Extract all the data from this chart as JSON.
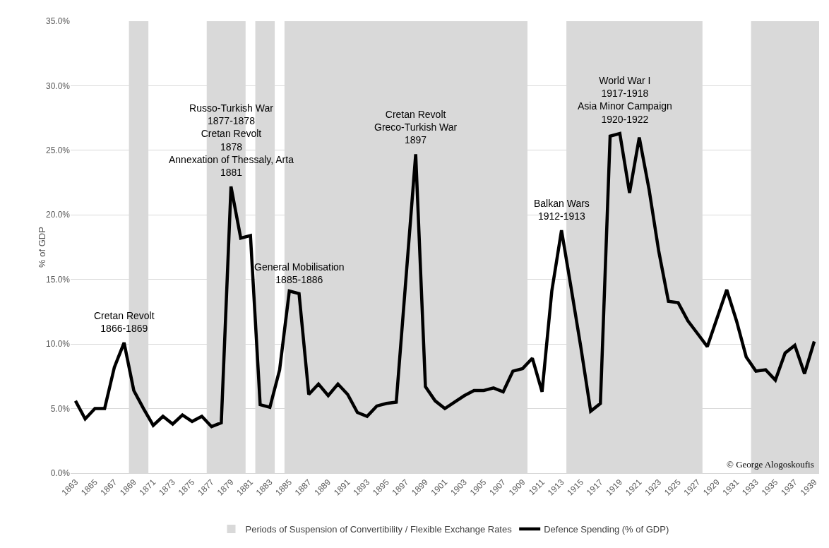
{
  "chart_data": {
    "type": "line",
    "ylabel": "% of GDP",
    "x": [
      1863,
      1864,
      1865,
      1866,
      1867,
      1868,
      1869,
      1870,
      1871,
      1872,
      1873,
      1874,
      1875,
      1876,
      1877,
      1878,
      1879,
      1880,
      1881,
      1882,
      1883,
      1884,
      1885,
      1886,
      1887,
      1888,
      1889,
      1890,
      1891,
      1892,
      1893,
      1894,
      1895,
      1896,
      1897,
      1898,
      1899,
      1900,
      1901,
      1902,
      1903,
      1904,
      1905,
      1906,
      1907,
      1908,
      1909,
      1910,
      1911,
      1912,
      1913,
      1914,
      1915,
      1916,
      1917,
      1918,
      1919,
      1920,
      1921,
      1922,
      1923,
      1924,
      1925,
      1926,
      1927,
      1928,
      1929,
      1930,
      1931,
      1932,
      1933,
      1934,
      1935,
      1936,
      1937,
      1938,
      1939
    ],
    "series": [
      {
        "name": "Defence Spending (% of GDP)",
        "color": "#000000",
        "values": [
          5.6,
          4.2,
          5.0,
          5.0,
          8.2,
          10.1,
          6.4,
          5.0,
          3.7,
          4.4,
          3.8,
          4.5,
          4.0,
          4.4,
          3.6,
          3.9,
          22.2,
          18.2,
          18.4,
          5.3,
          5.1,
          8.0,
          14.1,
          13.9,
          6.1,
          6.9,
          6.0,
          6.9,
          6.1,
          4.7,
          4.4,
          5.2,
          5.4,
          5.5,
          15.1,
          24.7,
          6.7,
          5.6,
          5.0,
          5.5,
          6.0,
          6.4,
          6.4,
          6.6,
          6.3,
          7.9,
          8.1,
          8.9,
          6.3,
          14.1,
          18.8,
          14.3,
          9.7,
          4.8,
          5.4,
          26.1,
          26.3,
          21.7,
          26.0,
          22.0,
          17.2,
          13.3,
          13.2,
          11.8,
          10.8,
          9.8,
          12.0,
          14.2,
          11.8,
          9.0,
          7.9,
          8.0,
          7.2,
          9.3,
          9.9,
          7.7,
          10.2
        ]
      }
    ],
    "bands": [
      {
        "axis": "x",
        "from": 1868.5,
        "to": 1870.5,
        "label": "Periods of Suspension of Convertibility / Flexible Exchange Rates",
        "color": "#d9d9d9"
      },
      {
        "axis": "x",
        "from": 1876.5,
        "to": 1880.5,
        "color": "#d9d9d9"
      },
      {
        "axis": "x",
        "from": 1881.5,
        "to": 1883.5,
        "color": "#d9d9d9"
      },
      {
        "axis": "x",
        "from": 1884.5,
        "to": 1909.5,
        "color": "#d9d9d9"
      },
      {
        "axis": "x",
        "from": 1913.5,
        "to": 1927.5,
        "color": "#d9d9d9"
      },
      {
        "axis": "x",
        "from": 1932.5,
        "to": 1939.5,
        "color": "#d9d9d9"
      }
    ],
    "annotations": [
      {
        "text": "Cretan Revolt\n1866-1869",
        "x": 1868,
        "y": 10.1
      },
      {
        "text": "Russo-Turkish War\n1877-1878\nCretan Revolt\n1878\nAnnexation of Thessaly, Arta\n1881",
        "x": 1879,
        "y": 22.2
      },
      {
        "text": "General Mobilisation\n1885-1886",
        "x": 1886,
        "y": 13.9
      },
      {
        "text": "Cretan Revolt\nGreco-Turkish War\n1897",
        "x": 1898,
        "y": 24.7
      },
      {
        "text": "Balkan Wars\n1912-1913",
        "x": 1913,
        "y": 18.8
      },
      {
        "text": "World War I\n1917-1918\nAsia Minor Campaign\n1920-1922",
        "x": 1919.5,
        "y": 26.3
      },
      "© George Alogoskoufis"
    ],
    "xlim": [
      1862.5,
      1939.5
    ],
    "xticks": [
      1863,
      1865,
      1867,
      1869,
      1871,
      1873,
      1875,
      1877,
      1879,
      1881,
      1883,
      1885,
      1887,
      1889,
      1891,
      1893,
      1895,
      1897,
      1899,
      1901,
      1903,
      1905,
      1907,
      1909,
      1911,
      1913,
      1915,
      1917,
      1919,
      1921,
      1923,
      1925,
      1927,
      1929,
      1931,
      1933,
      1935,
      1937,
      1939
    ],
    "ylim": [
      0,
      35
    ],
    "yticks": [
      {
        "value": 0,
        "label": "0.0%"
      },
      {
        "value": 5,
        "label": "5.0%"
      },
      {
        "value": 10,
        "label": "10.0%"
      },
      {
        "value": 15,
        "label": "15.0%"
      },
      {
        "value": 20,
        "label": "20.0%"
      },
      {
        "value": 25,
        "label": "25.0%"
      },
      {
        "value": 30,
        "label": "30.0%"
      },
      {
        "value": 35,
        "label": "35.0%"
      }
    ],
    "grid": "y",
    "legend": "bottom",
    "marker": "none",
    "line_style": "solid"
  }
}
